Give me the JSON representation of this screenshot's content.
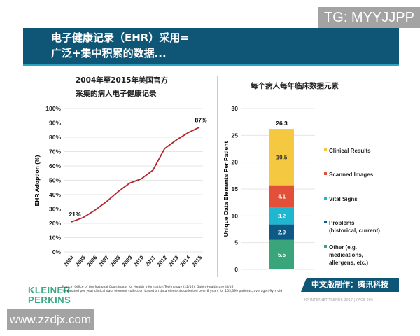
{
  "watermark_top": "TG: MYYJJPP",
  "watermark_bottom": "www.zzdjx.com",
  "header": {
    "line1": "电子健康记录（EHR）采用=",
    "line2": "广泛+集中积累的数据..."
  },
  "footer": {
    "logo_line1": "KLEINER",
    "logo_line2": "PERKINS",
    "source": "Source: Office of the National Coordinator for Health Information Technology (12/16), Galen Healthcare (8/16)",
    "note": "*Estimated per year clinical data element collection based on data elements collected over 6 years for 165,399 patients, average 49yrs old",
    "badge": "中文版制作：腾讯科技",
    "page": "KP INTERNET TRENDS 2017  |  PAGE 296"
  },
  "colors": {
    "header": "#0e5576",
    "accent": "#2aa3c0",
    "line": "#b5262b"
  },
  "chart_data": [
    {
      "type": "line",
      "title": [
        "2004年至2015年美国官方",
        "采集的病人电子健康记录"
      ],
      "ylabel": "EHR Adoption (%)",
      "ylim": [
        0,
        100
      ],
      "yticks": [
        "0%",
        "10%",
        "20%",
        "30%",
        "40%",
        "50%",
        "60%",
        "70%",
        "80%",
        "90%",
        "100%"
      ],
      "categories": [
        "2004",
        "2005",
        "2006",
        "2007",
        "2008",
        "2009",
        "2010",
        "2011",
        "2012",
        "2013",
        "2014",
        "2015"
      ],
      "values": [
        21,
        24,
        29,
        35,
        42,
        48,
        51,
        57,
        72,
        78,
        83,
        87
      ],
      "annotations": [
        {
          "x": "2004",
          "label": "21%"
        },
        {
          "x": "2015",
          "label": "87%"
        }
      ],
      "grid": true
    },
    {
      "type": "bar",
      "stacked": true,
      "title": "每个病人每年临床数据元素",
      "ylabel": "Unique Data Elements Per Patient",
      "ylim": [
        0,
        30
      ],
      "yticks": [
        "0",
        "5",
        "10",
        "15",
        "20",
        "25",
        "30"
      ],
      "total_label": "26.3",
      "series": [
        {
          "name": "Other (e.g. medications, allergens, etc.)",
          "value": 5.5,
          "label": "5.5",
          "color": "#3aa57a"
        },
        {
          "name": "Problems (historical, current)",
          "value": 2.9,
          "label": "2.9",
          "color": "#0d5a86"
        },
        {
          "name": "Vital Signs",
          "value": 3.2,
          "label": "3.2",
          "color": "#1fb6d0"
        },
        {
          "name": "Scanned Images",
          "value": 4.1,
          "label": "4.1",
          "color": "#e2503a"
        },
        {
          "name": "Clinical Results",
          "value": 10.5,
          "label": "10.5",
          "color": "#f5c842"
        }
      ],
      "legend": [
        "Clinical Results",
        "Scanned Images",
        "Vital Signs",
        "Problems",
        "(historical, current)",
        "Other (e.g.",
        "medications,",
        "allergens, etc.)"
      ],
      "legend_position": "right",
      "grid": true
    }
  ]
}
